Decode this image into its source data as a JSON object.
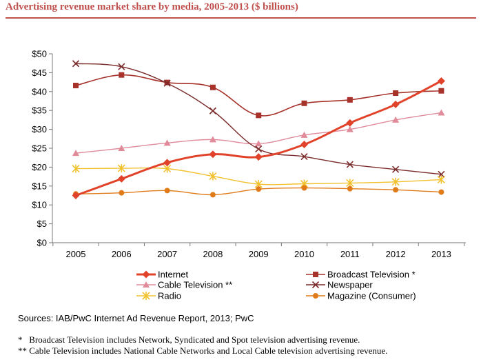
{
  "title": "Advertising revenue market share by media, 2005-2013 ($ billions)",
  "source": "Sources: IAB/PwC Internet Ad Revenue Report, 2013; PwC",
  "footnotes": [
    "*   Broadcast Television includes Network, Syndicated and Spot television advertising revenue.",
    "** Cable Television includes National Cable Networks and Local Cable television advertising revenue."
  ],
  "chart_data": {
    "type": "line",
    "title": "Advertising revenue market share by media, 2005-2013 ($ billions)",
    "xlabel": "",
    "ylabel": "",
    "ylim": [
      0,
      50
    ],
    "yticks": [
      0,
      5,
      10,
      15,
      20,
      25,
      30,
      35,
      40,
      45,
      50
    ],
    "ytick_labels": [
      "$0",
      "$5",
      "$10",
      "$15",
      "$20",
      "$25",
      "$30",
      "$35",
      "$40",
      "$45",
      "$50"
    ],
    "categories": [
      "2005",
      "2006",
      "2007",
      "2008",
      "2009",
      "2010",
      "2011",
      "2012",
      "2013"
    ],
    "grid": false,
    "legend_position": "bottom",
    "series": [
      {
        "name": "Internet",
        "color": "#e0432a",
        "marker": "diamond",
        "width": 3,
        "values": [
          12.5,
          16.9,
          21.2,
          23.4,
          22.7,
          26.0,
          31.7,
          36.6,
          42.8
        ]
      },
      {
        "name": "Broadcast Television *",
        "color": "#a6322a",
        "marker": "square",
        "width": 1.6,
        "values": [
          41.6,
          44.4,
          42.4,
          41.1,
          33.7,
          36.9,
          37.8,
          39.6,
          40.2
        ]
      },
      {
        "name": "Cable Television **",
        "color": "#e08a9a",
        "marker": "triangle",
        "width": 1.4,
        "values": [
          23.7,
          25.0,
          26.4,
          27.3,
          26.2,
          28.5,
          30.0,
          32.5,
          34.4
        ]
      },
      {
        "name": "Newspaper",
        "color": "#7a2a2a",
        "marker": "x",
        "width": 1.4,
        "values": [
          47.4,
          46.6,
          42.2,
          34.9,
          24.8,
          22.8,
          20.7,
          19.4,
          18.1
        ]
      },
      {
        "name": "Radio",
        "color": "#f2c12e",
        "marker": "star",
        "width": 1.4,
        "values": [
          19.6,
          19.7,
          19.6,
          17.6,
          15.5,
          15.6,
          15.8,
          16.1,
          16.7
        ]
      },
      {
        "name": "Magazine (Consumer)",
        "color": "#e07b1a",
        "marker": "circle",
        "width": 1.4,
        "values": [
          12.9,
          13.2,
          13.8,
          12.7,
          14.2,
          14.5,
          14.3,
          14.0,
          13.4
        ]
      }
    ]
  }
}
